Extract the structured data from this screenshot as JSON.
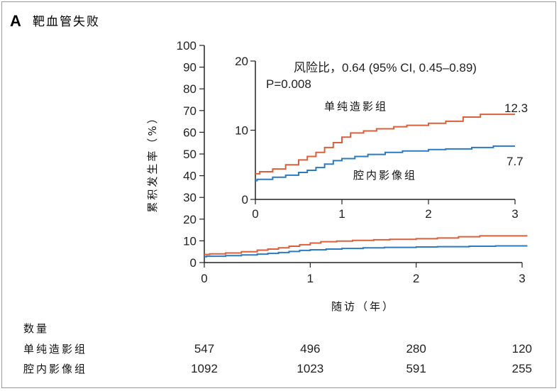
{
  "chart_data": {
    "type": "line",
    "panel_label": "A",
    "title": "靶血管失败",
    "ylabel": "累积发生率（%）",
    "xlabel": "随访（年）",
    "main": {
      "ylim": [
        0,
        100
      ],
      "xlim": [
        0,
        3
      ],
      "y_ticks": [
        "0",
        "10",
        "20",
        "30",
        "40",
        "50",
        "60",
        "70",
        "80",
        "90",
        "100"
      ],
      "x_ticks": [
        "0",
        "1",
        "2",
        "3"
      ]
    },
    "inset": {
      "ylim": [
        0,
        20
      ],
      "xlim": [
        0,
        3
      ],
      "y_ticks": [
        "0",
        "10",
        "20"
      ],
      "x_ticks": [
        "0",
        "1",
        "2",
        "3"
      ],
      "hazard_ratio": "风险比，0.64 (95% CI, 0.45–0.89)",
      "p_value": "P=0.008",
      "end_labels": [
        "12.3",
        "7.7"
      ]
    },
    "series": [
      {
        "name": "单纯造影组",
        "color": "#d9603b",
        "x": [
          0,
          0.05,
          0.2,
          0.35,
          0.5,
          0.6,
          0.7,
          0.8,
          0.9,
          1.0,
          1.1,
          1.25,
          1.4,
          1.6,
          1.75,
          2.0,
          2.2,
          2.4,
          2.6,
          3.0
        ],
        "y": [
          3.7,
          4.0,
          4.4,
          5.0,
          5.7,
          6.2,
          6.8,
          7.5,
          8.2,
          9.0,
          9.6,
          9.9,
          10.2,
          10.5,
          10.7,
          11.0,
          11.3,
          11.9,
          12.3,
          12.3
        ]
      },
      {
        "name": "腔内影像组",
        "color": "#2b7bc0",
        "x": [
          0,
          0.02,
          0.2,
          0.35,
          0.5,
          0.6,
          0.7,
          0.8,
          0.9,
          1.0,
          1.15,
          1.3,
          1.5,
          1.7,
          2.0,
          2.2,
          2.5,
          2.75,
          3.0
        ],
        "y": [
          2.7,
          2.9,
          3.2,
          3.5,
          3.9,
          4.2,
          4.6,
          5.1,
          5.6,
          5.9,
          6.2,
          6.5,
          6.8,
          7.0,
          7.2,
          7.3,
          7.5,
          7.7,
          7.7
        ]
      }
    ],
    "at_risk": {
      "label": "数量",
      "rows": [
        {
          "name": "单纯造影组",
          "values": [
            "547",
            "496",
            "280",
            "120"
          ]
        },
        {
          "name": "腔内影像组",
          "values": [
            "1092",
            "1023",
            "591",
            "255"
          ]
        }
      ]
    }
  }
}
